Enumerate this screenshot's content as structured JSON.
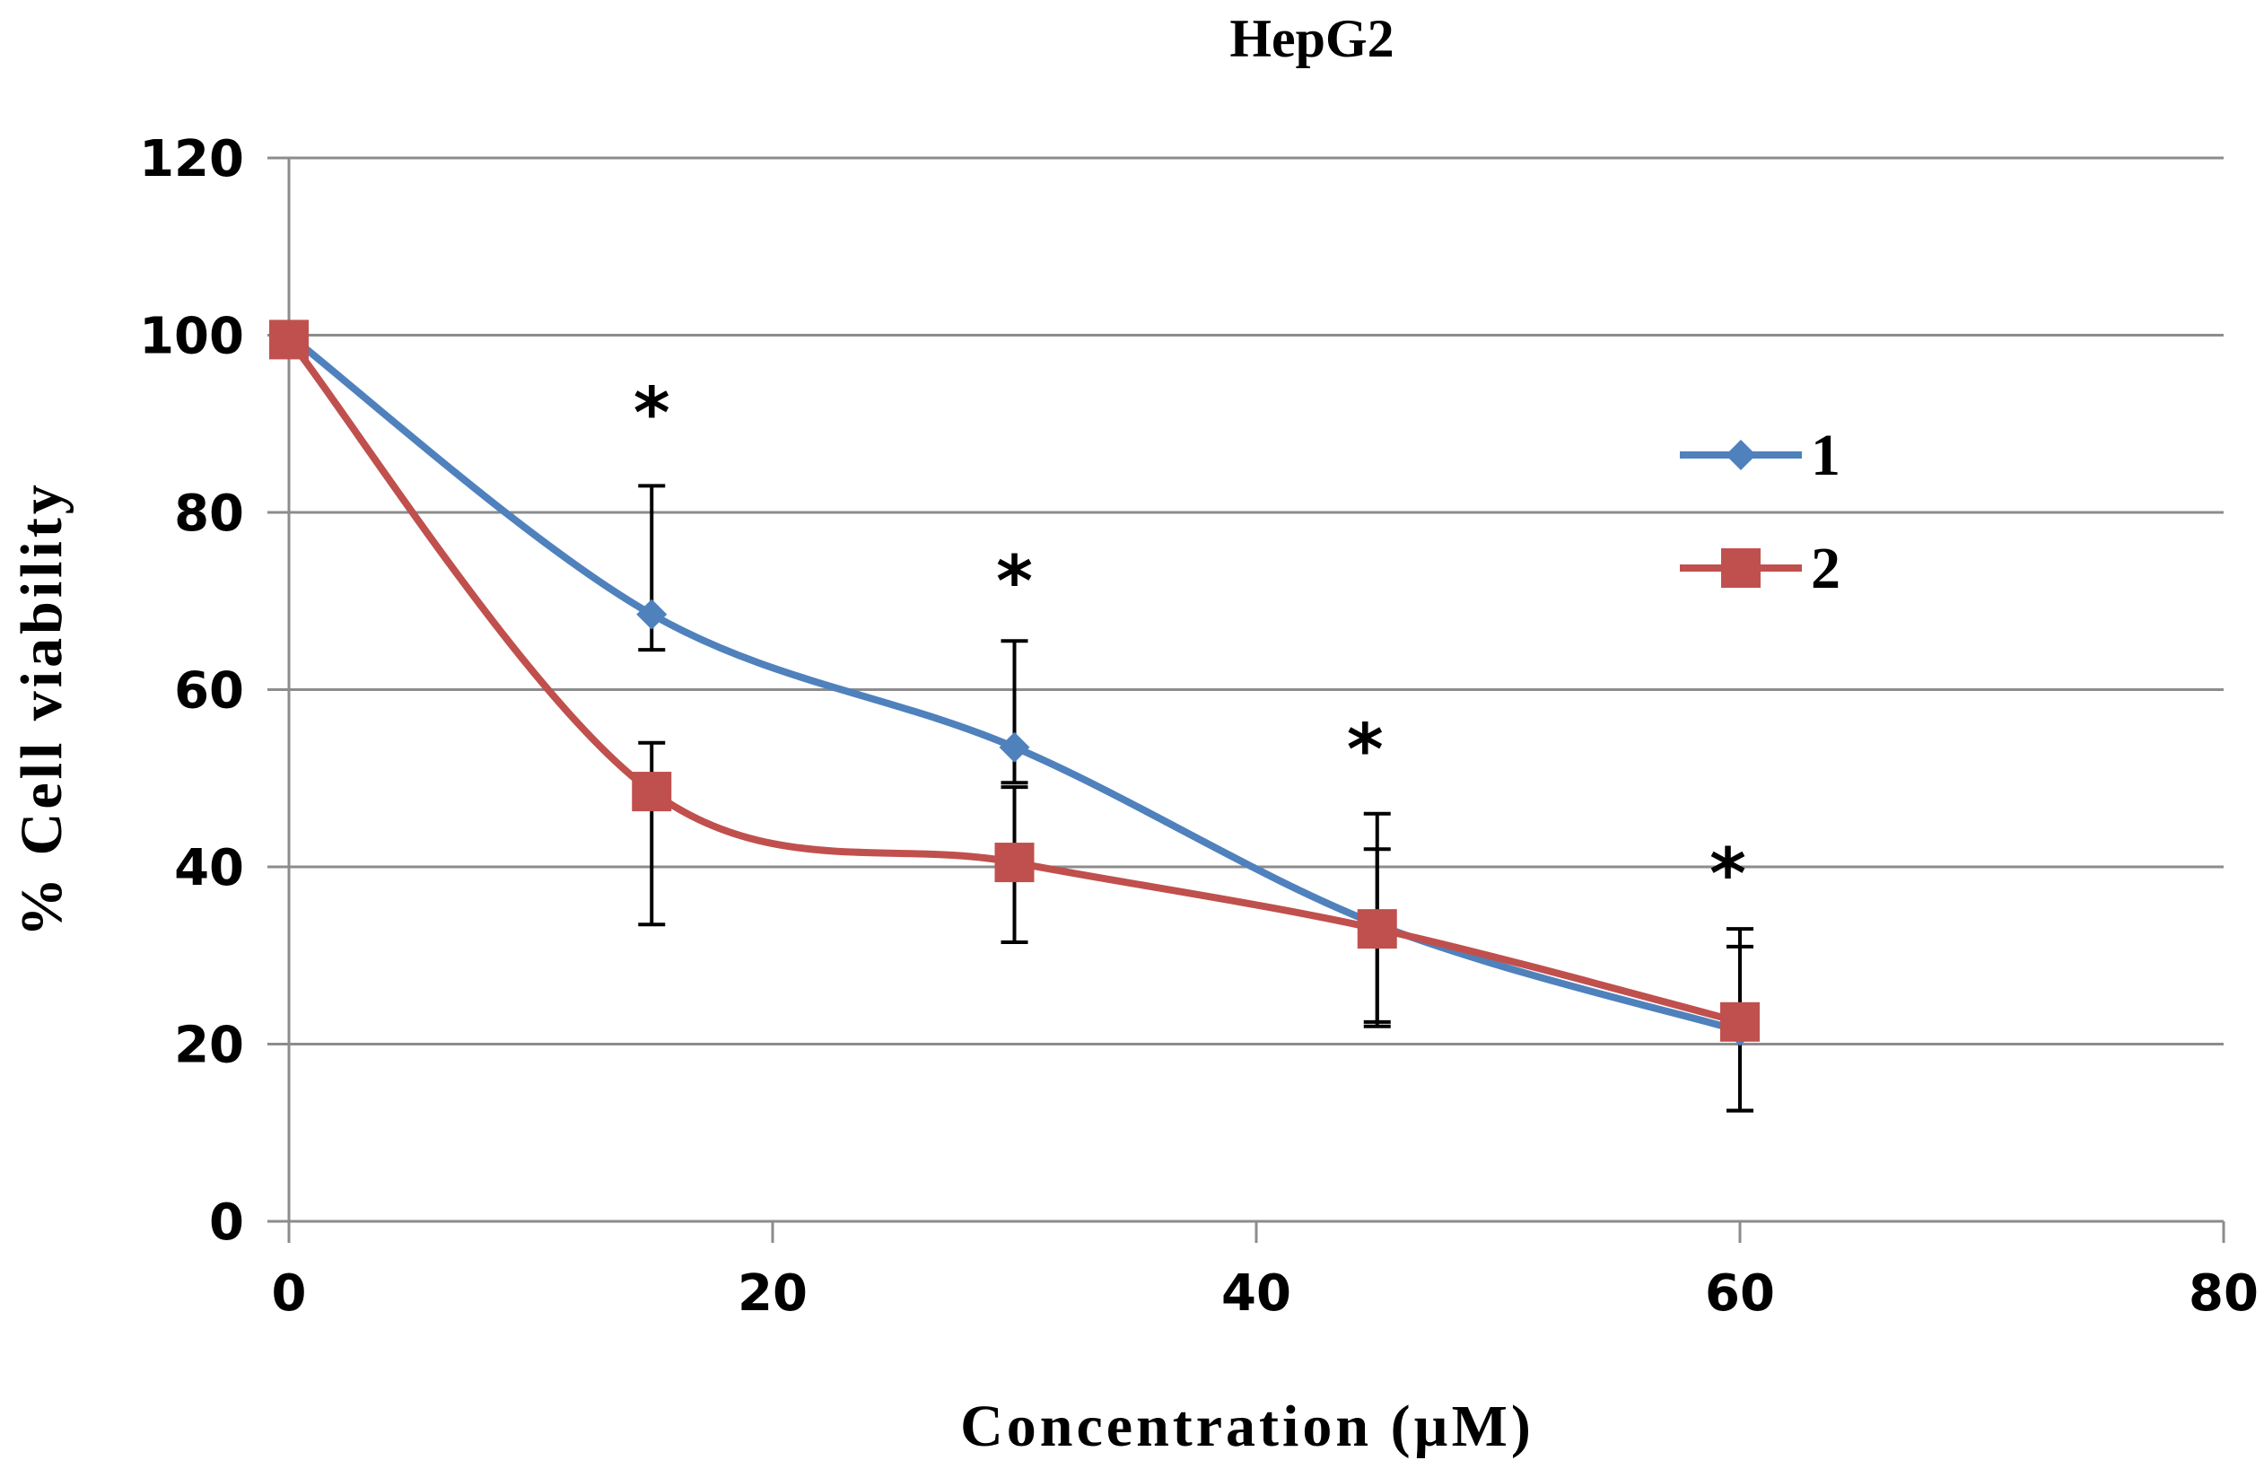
{
  "chart_data": {
    "type": "line",
    "title": "HepG2",
    "xlabel": "Concentration (µM)",
    "ylabel": "% Cell viability",
    "xlim": [
      0,
      80
    ],
    "ylim": [
      0,
      120
    ],
    "x_ticks": [
      0,
      20,
      40,
      60,
      80
    ],
    "y_ticks": [
      0,
      20,
      40,
      60,
      80,
      100,
      120
    ],
    "x_tick_labels": [
      "0",
      "20",
      "40",
      "60",
      "80"
    ],
    "y_tick_labels": [
      "0",
      "20",
      "40",
      "60",
      "80",
      "100",
      "120"
    ],
    "grid": "horizontal",
    "legend_position": "right",
    "series": [
      {
        "name": "1",
        "color": "#4F81BD",
        "marker": "diamond",
        "x": [
          0,
          15,
          30,
          45,
          60
        ],
        "y": [
          100,
          68.5,
          53.5,
          33.5,
          21.5
        ],
        "err_low": [
          null,
          64.5,
          49.5,
          22.5,
          12.5
        ],
        "err_high": [
          null,
          83,
          65.5,
          42,
          31
        ]
      },
      {
        "name": "2",
        "color": "#C0504D",
        "marker": "square",
        "x": [
          0,
          15,
          30,
          45,
          60
        ],
        "y": [
          99.5,
          48.5,
          40.5,
          33,
          22.5
        ],
        "err_low": [
          null,
          33.5,
          31.5,
          22,
          12.5
        ],
        "err_high": [
          null,
          54,
          49,
          46,
          33
        ]
      }
    ],
    "annotations": [
      {
        "text": "*",
        "x": 15,
        "y": 91.5
      },
      {
        "text": "*",
        "x": 30,
        "y": 72.5
      },
      {
        "text": "*",
        "x": 44.5,
        "y": 53.5
      },
      {
        "text": "*",
        "x": 59.5,
        "y": 39.5
      }
    ]
  }
}
